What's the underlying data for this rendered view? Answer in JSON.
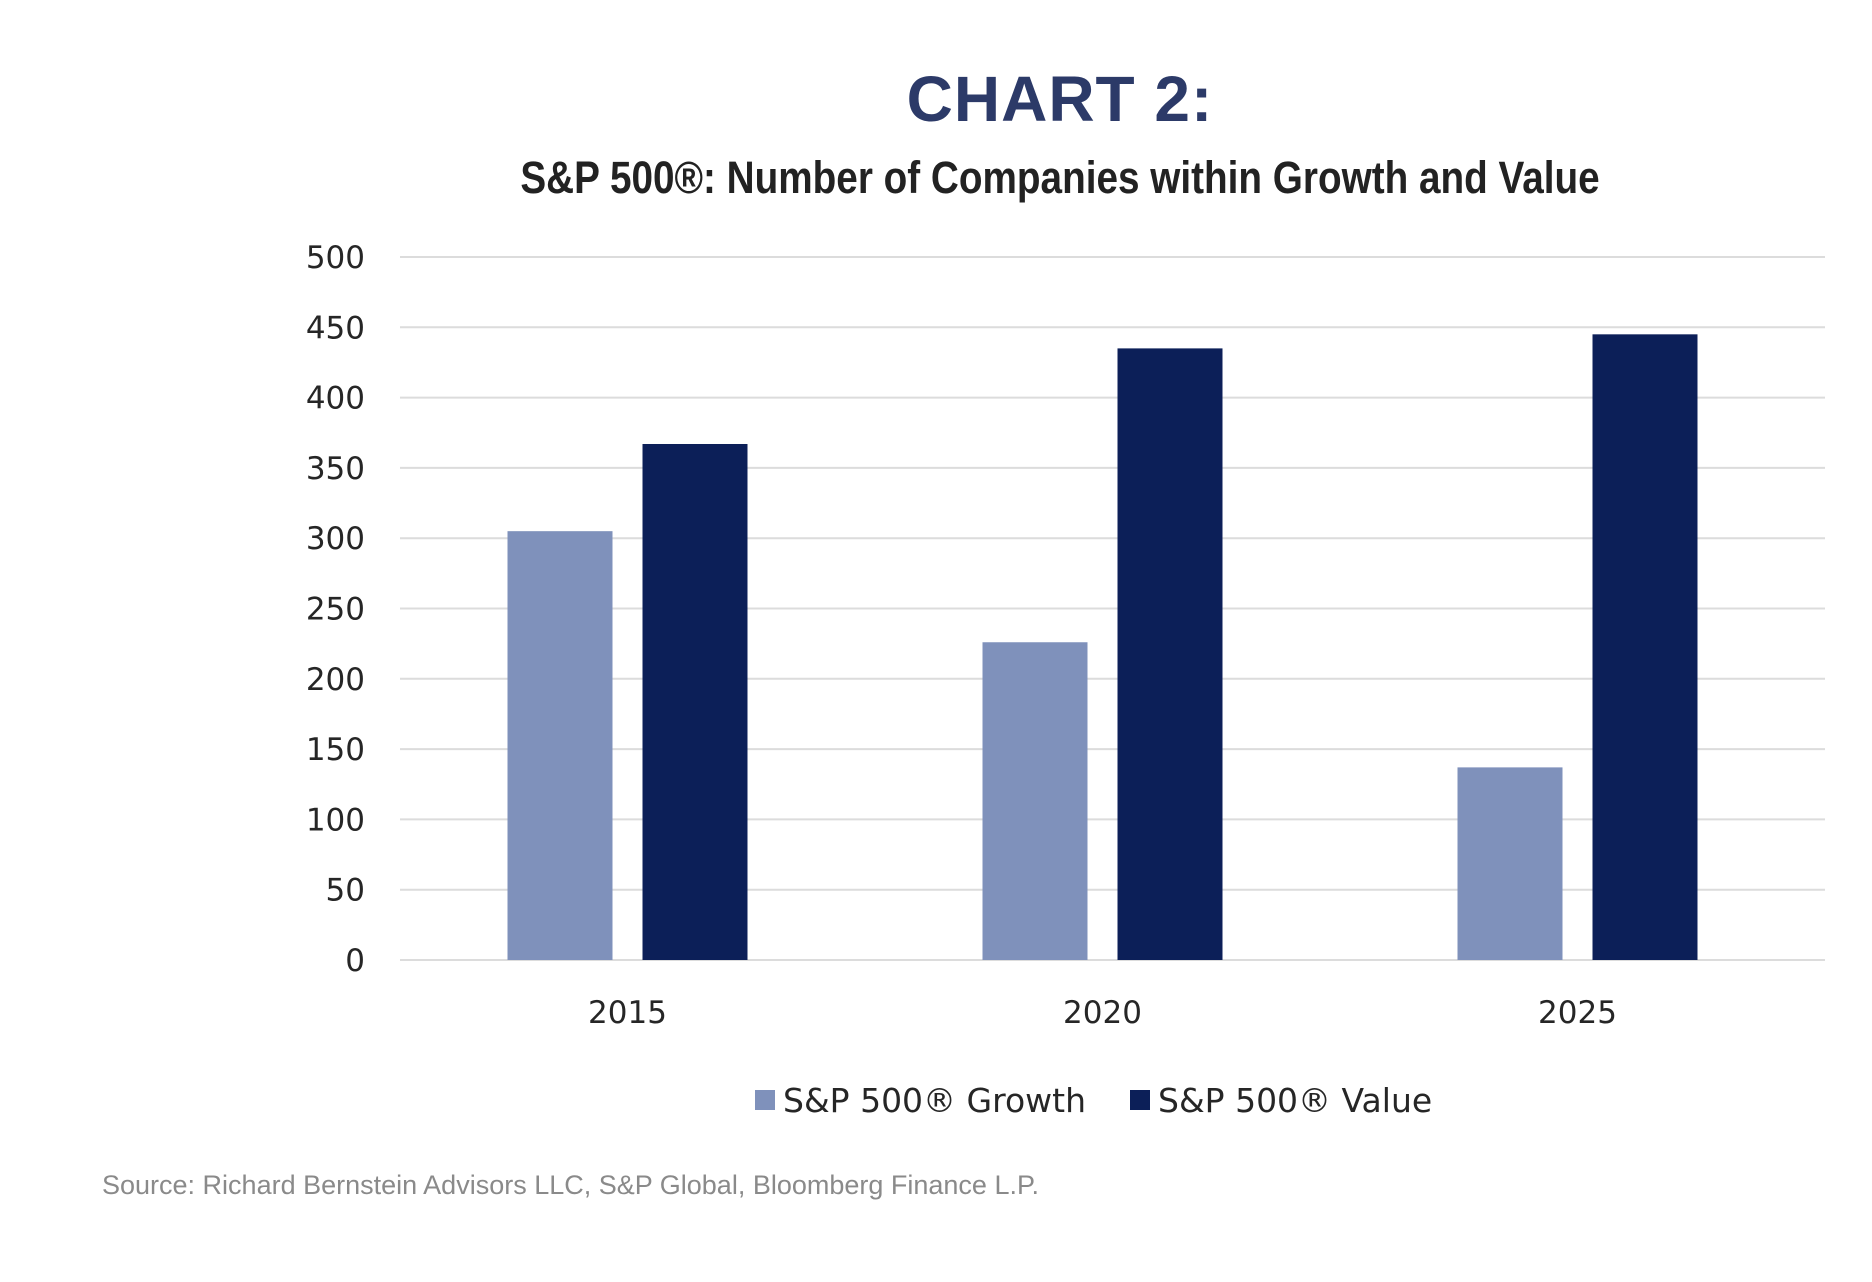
{
  "colors": {
    "heading": "#2c3a68",
    "growth": "#7f91bb",
    "value": "#0c1f58",
    "grid": "#dcdcdc"
  },
  "chart_data": {
    "type": "bar",
    "heading": "CHART 2:",
    "title": "S&P 500®: Number of Companies within Growth and Value",
    "categories": [
      "2015",
      "2020",
      "2025"
    ],
    "series": [
      {
        "name": "S&P 500® Growth",
        "values": [
          305,
          226,
          137
        ]
      },
      {
        "name": "S&P 500® Value",
        "values": [
          367,
          435,
          445
        ]
      }
    ],
    "ylim": [
      0,
      500
    ],
    "yticks": [
      0,
      50,
      100,
      150,
      200,
      250,
      300,
      350,
      400,
      450,
      500
    ],
    "xlabel": "",
    "ylabel": "",
    "grid": true,
    "legend_position": "bottom",
    "source": "Source: Richard Bernstein Advisors LLC, S&P Global, Bloomberg Finance L.P."
  }
}
